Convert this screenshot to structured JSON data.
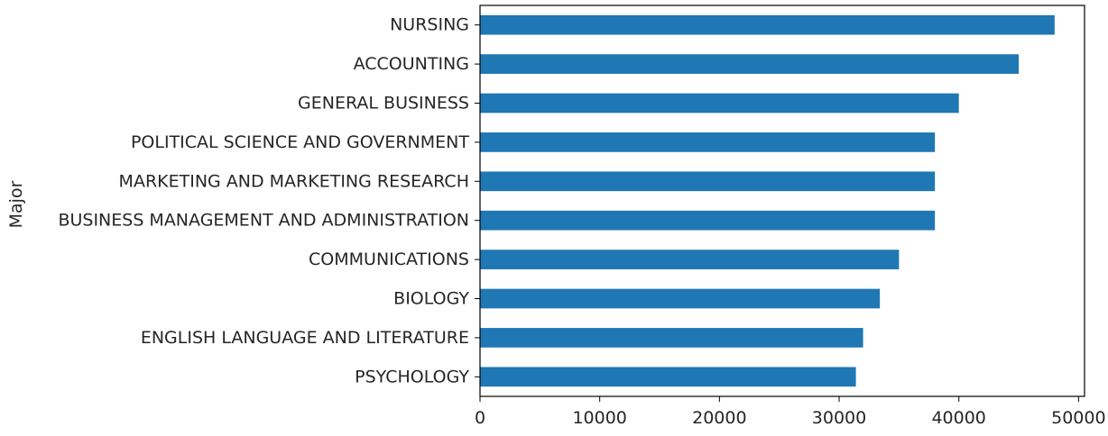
{
  "chart_data": {
    "type": "bar",
    "orientation": "horizontal",
    "title": "",
    "xlabel": "",
    "ylabel": "Major",
    "categories": [
      "PSYCHOLOGY",
      "ENGLISH LANGUAGE AND LITERATURE",
      "BIOLOGY",
      "COMMUNICATIONS",
      "BUSINESS MANAGEMENT AND ADMINISTRATION",
      "MARKETING AND MARKETING RESEARCH",
      "POLITICAL SCIENCE AND GOVERNMENT",
      "GENERAL BUSINESS",
      "ACCOUNTING",
      "NURSING"
    ],
    "values": [
      31400,
      32000,
      33400,
      35000,
      38000,
      38000,
      38000,
      40000,
      45000,
      48000
    ],
    "xlim": [
      0,
      50500
    ],
    "xticks": [
      0,
      10000,
      20000,
      30000,
      40000,
      50000
    ],
    "bar_color": "#1f77b4",
    "grid": false,
    "legend": "none"
  }
}
